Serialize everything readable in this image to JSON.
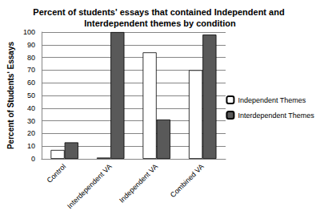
{
  "chart_data": {
    "type": "bar",
    "title": "Percent of students' essays that contained Independent and Interdependent themes by condition",
    "y_label": "Percent of Students' Essays",
    "categories": [
      "Control",
      "Interdependent VA",
      "Independent VA",
      "Combined VA"
    ],
    "series": [
      {
        "name": "Independent Themes",
        "color": "#ffffff",
        "values": [
          7,
          1,
          84,
          70
        ]
      },
      {
        "name": "Interdependent Themes",
        "color": "#595959",
        "values": [
          13,
          100,
          31,
          98
        ]
      }
    ],
    "ylim": [
      0,
      100
    ],
    "yticks": [
      0,
      10,
      20,
      30,
      40,
      50,
      60,
      70,
      80,
      90,
      100
    ],
    "grid": true,
    "legend": "right"
  }
}
